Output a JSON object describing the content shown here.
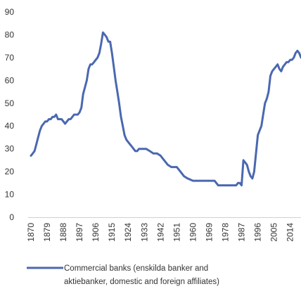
{
  "chart_data": {
    "type": "line",
    "title": "",
    "xlabel": "",
    "ylabel": "",
    "ylim": [
      0,
      90
    ],
    "xlim": [
      1870,
      2020
    ],
    "y_ticks": [
      "0",
      "10",
      "20",
      "30",
      "40",
      "50",
      "60",
      "70",
      "80",
      "90"
    ],
    "x_ticks": [
      "1870",
      "1879",
      "1888",
      "1897",
      "1906",
      "1915",
      "1924",
      "1933",
      "1942",
      "1951",
      "1960",
      "1969",
      "1978",
      "1987",
      "1996",
      "2005",
      "2014"
    ],
    "grid": false,
    "legend_position": "bottom",
    "series": [
      {
        "name": "Commercial banks (enskilda banker and aktiebanker, domestic and foreign affiliates)",
        "legend_lines": [
          "Commercial banks (enskilda banker and",
          "aktiebanker, domestic and foreign affiliates)"
        ],
        "color": "#4a68b0",
        "x": [
          1870,
          1871,
          1872,
          1873,
          1874,
          1875,
          1876,
          1877,
          1878,
          1879,
          1880,
          1881,
          1882,
          1883,
          1884,
          1885,
          1886,
          1887,
          1888,
          1889,
          1890,
          1891,
          1892,
          1893,
          1894,
          1895,
          1896,
          1897,
          1898,
          1899,
          1900,
          1901,
          1902,
          1903,
          1904,
          1905,
          1906,
          1907,
          1908,
          1909,
          1910,
          1911,
          1912,
          1913,
          1914,
          1915,
          1916,
          1917,
          1918,
          1919,
          1920,
          1921,
          1922,
          1923,
          1924,
          1925,
          1926,
          1927,
          1928,
          1929,
          1930,
          1932,
          1934,
          1936,
          1938,
          1940,
          1942,
          1944,
          1946,
          1948,
          1950,
          1951,
          1953,
          1955,
          1957,
          1960,
          1963,
          1966,
          1969,
          1972,
          1974,
          1976,
          1978,
          1980,
          1982,
          1984,
          1985,
          1986,
          1987,
          1988,
          1989,
          1990,
          1991,
          1992,
          1993,
          1994,
          1995,
          1996,
          1997,
          1998,
          1999,
          2000,
          2001,
          2002,
          2003,
          2004,
          2005,
          2006,
          2007,
          2008,
          2009,
          2010,
          2011,
          2012,
          2013,
          2014,
          2015,
          2016,
          2017,
          2018,
          2019,
          2020
        ],
        "y": [
          27,
          28,
          29,
          32,
          35,
          38,
          40,
          41,
          42,
          42,
          43,
          43,
          44,
          44,
          45,
          43,
          43,
          43,
          42,
          41,
          42,
          43,
          43,
          44,
          45,
          45,
          45,
          46,
          48,
          54,
          57,
          60,
          65,
          67,
          67,
          68,
          69,
          70,
          72,
          76,
          81,
          80,
          79,
          77,
          77,
          72,
          66,
          60,
          55,
          50,
          44,
          40,
          36,
          34,
          33,
          32,
          31,
          30,
          29,
          29,
          30,
          30,
          30,
          29,
          28,
          28,
          27,
          25,
          23,
          22,
          22,
          22,
          20,
          18,
          17,
          16,
          16,
          16,
          16,
          16,
          14,
          14,
          14,
          14,
          14,
          14,
          15,
          15,
          14,
          25,
          24,
          23,
          20,
          18,
          17,
          20,
          28,
          36,
          38,
          40,
          45,
          50,
          52,
          55,
          62,
          64,
          65,
          66,
          67,
          65,
          64,
          66,
          67,
          68,
          68,
          69,
          69,
          70,
          72,
          73,
          72,
          70
        ]
      }
    ]
  }
}
